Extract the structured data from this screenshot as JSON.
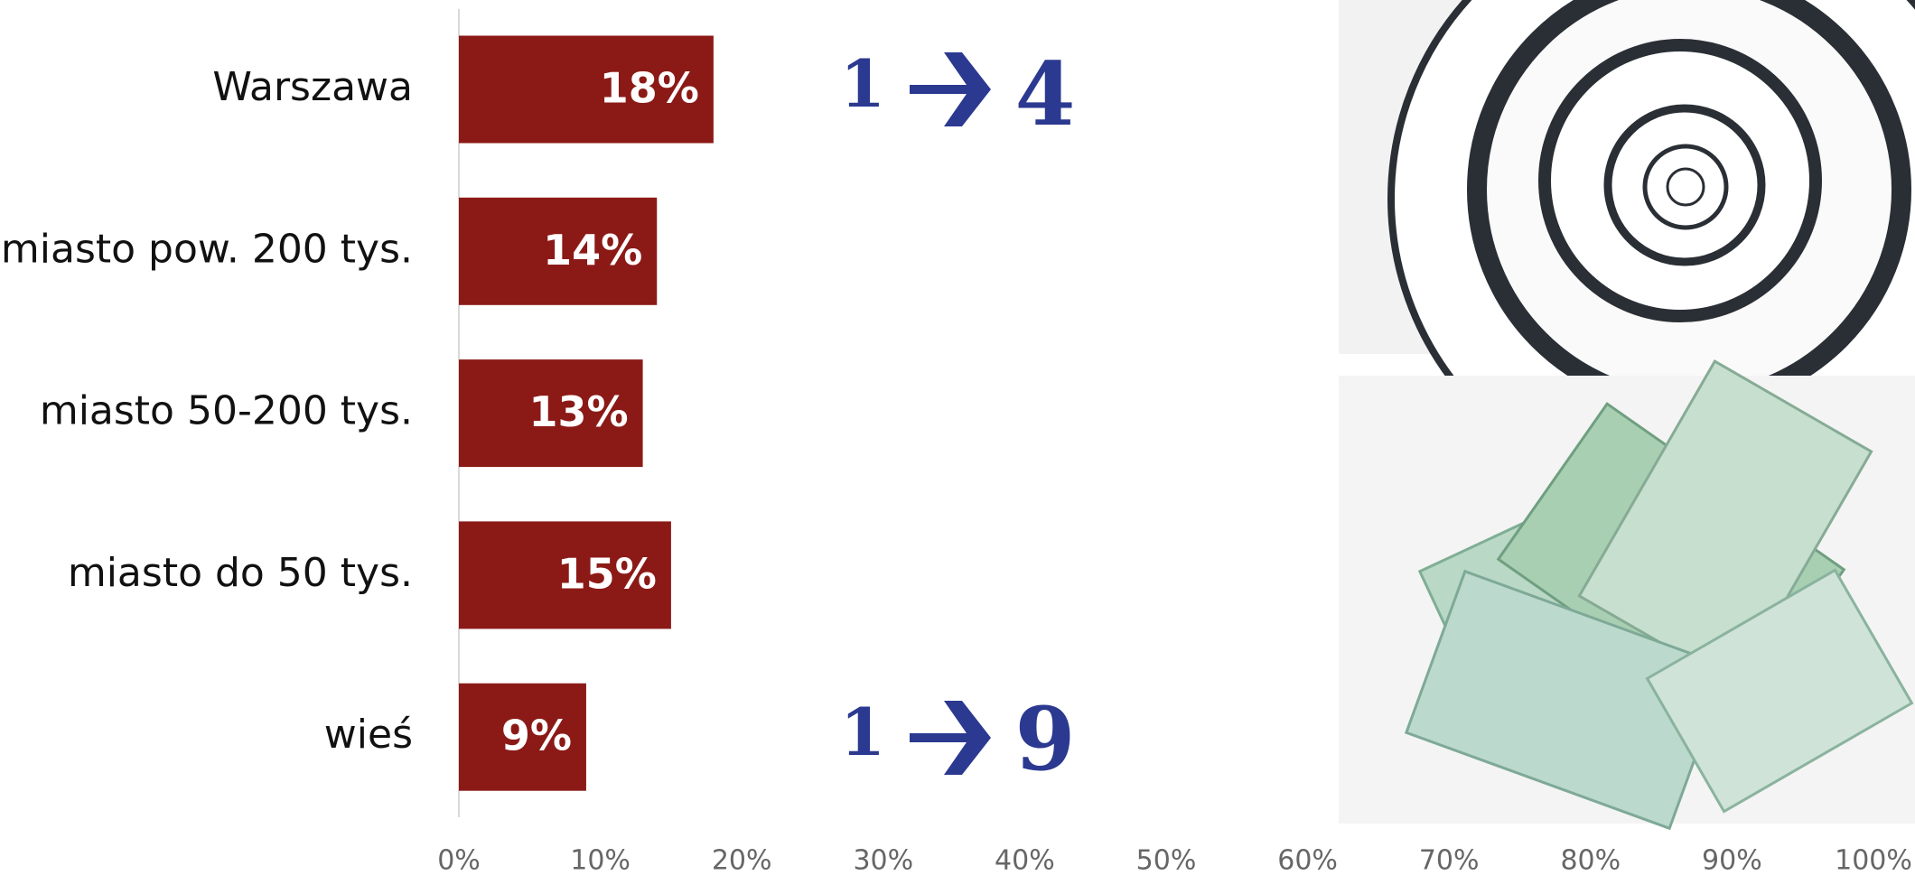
{
  "chart_data": {
    "type": "bar",
    "orientation": "horizontal",
    "categories": [
      "Warszawa",
      "miasto pow. 200 tys.",
      "miasto 50-200 tys.",
      "miasto do 50 tys.",
      "wieś"
    ],
    "values": [
      18,
      14,
      13,
      15,
      9
    ],
    "value_labels": [
      "18%",
      "14%",
      "13%",
      "15%",
      "9%"
    ],
    "color": "#8b1a17",
    "xlim": [
      0,
      100
    ],
    "xticks": [
      {
        "value": 0,
        "label": "0%"
      },
      {
        "value": 10,
        "label": "10%"
      },
      {
        "value": 20,
        "label": "20%"
      },
      {
        "value": 30,
        "label": "30%"
      },
      {
        "value": 40,
        "label": "40%"
      },
      {
        "value": 50,
        "label": "50%"
      },
      {
        "value": 60,
        "label": "60%"
      },
      {
        "value": 70,
        "label": "70%"
      },
      {
        "value": 80,
        "label": "80%"
      },
      {
        "value": 90,
        "label": "90%"
      },
      {
        "value": 100,
        "label": "100%"
      }
    ],
    "grid": false,
    "annotations": [
      {
        "from": "1",
        "to": "4"
      },
      {
        "from": "1",
        "to": "9"
      }
    ]
  }
}
